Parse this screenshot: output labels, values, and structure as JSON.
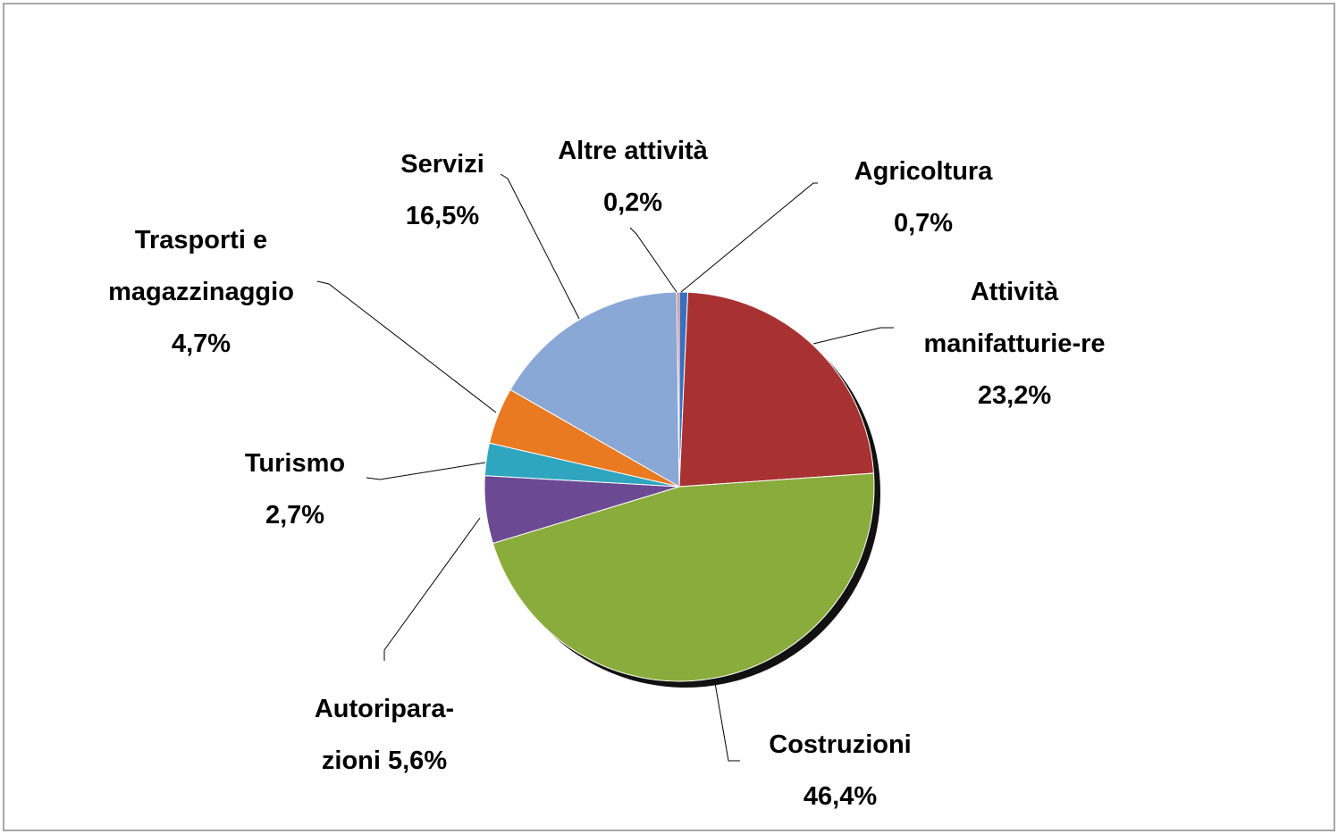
{
  "chart_data": {
    "type": "pie",
    "categories": [
      "Agricoltura",
      "Attività manifatturie-re",
      "Costruzioni",
      "Autoripara-zioni",
      "Turismo",
      "Trasporti e magazzinaggio",
      "Servizi",
      "Altre attività"
    ],
    "values": [
      0.7,
      23.2,
      46.4,
      5.6,
      2.7,
      4.7,
      16.5,
      0.2
    ],
    "value_labels": [
      "0,7%",
      "23,2%",
      "46,4%",
      "5,6%",
      "2,7%",
      "4,7%",
      "16,5%",
      "0,2%"
    ],
    "colors": [
      "#3a6fc0",
      "#a83232",
      "#8aac3c",
      "#6b4a93",
      "#2fa5c0",
      "#ea7a22",
      "#8aa8d6",
      "#d46a6a"
    ]
  }
}
